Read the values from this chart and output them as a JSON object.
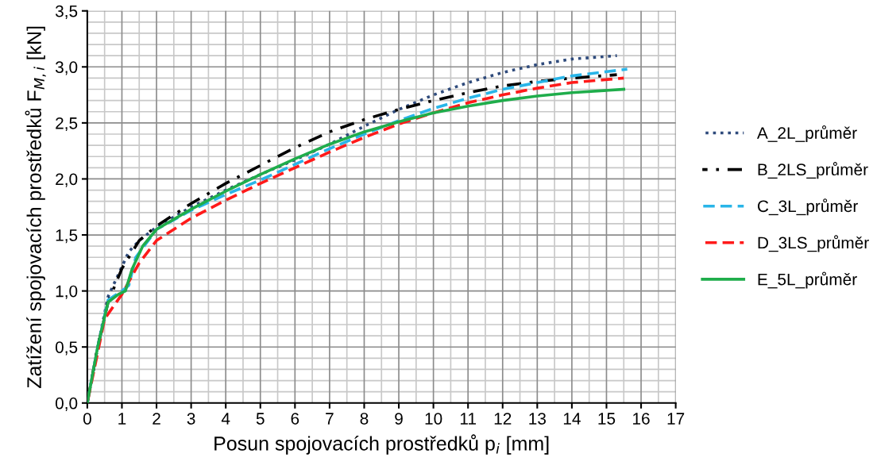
{
  "chart_data": {
    "type": "line",
    "xlabel": "Posun spojovacích prostředků p$_{i}$ [mm]",
    "ylabel": "Zatížení spojovacích prostředků F$_{M,i}$ [kN]",
    "xlim": [
      0,
      17
    ],
    "xticks": [
      0,
      1,
      2,
      3,
      4,
      5,
      6,
      7,
      8,
      9,
      10,
      11,
      12,
      13,
      14,
      15,
      16,
      17
    ],
    "ylim": [
      0,
      3.5
    ],
    "yticks": [
      {
        "value": 0,
        "label": "0,0"
      },
      {
        "value": 0.5,
        "label": "0,5"
      },
      {
        "value": 1,
        "label": "1,0"
      },
      {
        "value": 1.5,
        "label": "1,5"
      },
      {
        "value": 2,
        "label": "2,0"
      },
      {
        "value": 2.5,
        "label": "2,5"
      },
      {
        "value": 3,
        "label": "3,0"
      },
      {
        "value": 3.5,
        "label": "3,5"
      }
    ],
    "grid": true,
    "legend": "right",
    "marker": "none",
    "series": [
      {
        "name": "A_2L_průměr",
        "color": "#2f4b7c",
        "line_style": "dotted",
        "x": [
          0,
          0.3,
          0.6,
          0.9,
          1.2,
          1.5,
          2,
          3,
          4,
          5,
          6,
          7,
          8,
          9,
          10,
          11,
          12,
          13,
          14,
          15.3
        ],
        "values": [
          0,
          0.5,
          0.95,
          1.15,
          1.35,
          1.45,
          1.57,
          1.75,
          1.9,
          2.04,
          2.17,
          2.31,
          2.47,
          2.62,
          2.75,
          2.86,
          2.95,
          3.02,
          3.07,
          3.1
        ]
      },
      {
        "name": "B_2LS_průměr",
        "color": "#000000",
        "line_style": "dashdot",
        "x": [
          0,
          0.3,
          0.6,
          1,
          1.5,
          2,
          3,
          4,
          5,
          6,
          7,
          8,
          9,
          10,
          11,
          12,
          13,
          14,
          15.3
        ],
        "values": [
          0,
          0.5,
          0.9,
          1.2,
          1.45,
          1.58,
          1.78,
          1.96,
          2.12,
          2.28,
          2.42,
          2.53,
          2.62,
          2.7,
          2.77,
          2.83,
          2.87,
          2.9,
          2.93
        ]
      },
      {
        "name": "C_3L_průměr",
        "color": "#29b5e8",
        "line_style": "dashed",
        "x": [
          0,
          0.3,
          0.6,
          1,
          1.2,
          1.4,
          2,
          3,
          4,
          5,
          6,
          7,
          8,
          9,
          10,
          11,
          12,
          13,
          14,
          15.6
        ],
        "values": [
          0,
          0.5,
          0.92,
          1.0,
          1.05,
          1.3,
          1.55,
          1.72,
          1.86,
          1.99,
          2.13,
          2.27,
          2.4,
          2.52,
          2.63,
          2.72,
          2.8,
          2.86,
          2.92,
          2.98
        ]
      },
      {
        "name": "D_3LS_průměr",
        "color": "#ff1a1a",
        "line_style": "dashed",
        "x": [
          0,
          0.5,
          1,
          1.5,
          2,
          3,
          4,
          5,
          6,
          7,
          8,
          9,
          10,
          11,
          12,
          13,
          14,
          15.5
        ],
        "values": [
          0,
          0.75,
          0.97,
          1.25,
          1.45,
          1.65,
          1.81,
          1.96,
          2.1,
          2.24,
          2.37,
          2.49,
          2.59,
          2.68,
          2.75,
          2.81,
          2.86,
          2.9
        ]
      },
      {
        "name": "E_5L_průměr",
        "color": "#1fad4b",
        "line_style": "solid",
        "x": [
          0,
          0.3,
          0.6,
          0.9,
          1.1,
          1.3,
          1.6,
          2,
          3,
          4,
          5,
          6,
          7,
          8,
          9,
          10,
          11,
          12,
          13,
          14,
          15.5
        ],
        "values": [
          0,
          0.5,
          0.9,
          0.97,
          1.0,
          1.2,
          1.4,
          1.55,
          1.73,
          1.89,
          2.04,
          2.18,
          2.31,
          2.42,
          2.51,
          2.59,
          2.65,
          2.7,
          2.74,
          2.77,
          2.8
        ]
      }
    ]
  }
}
